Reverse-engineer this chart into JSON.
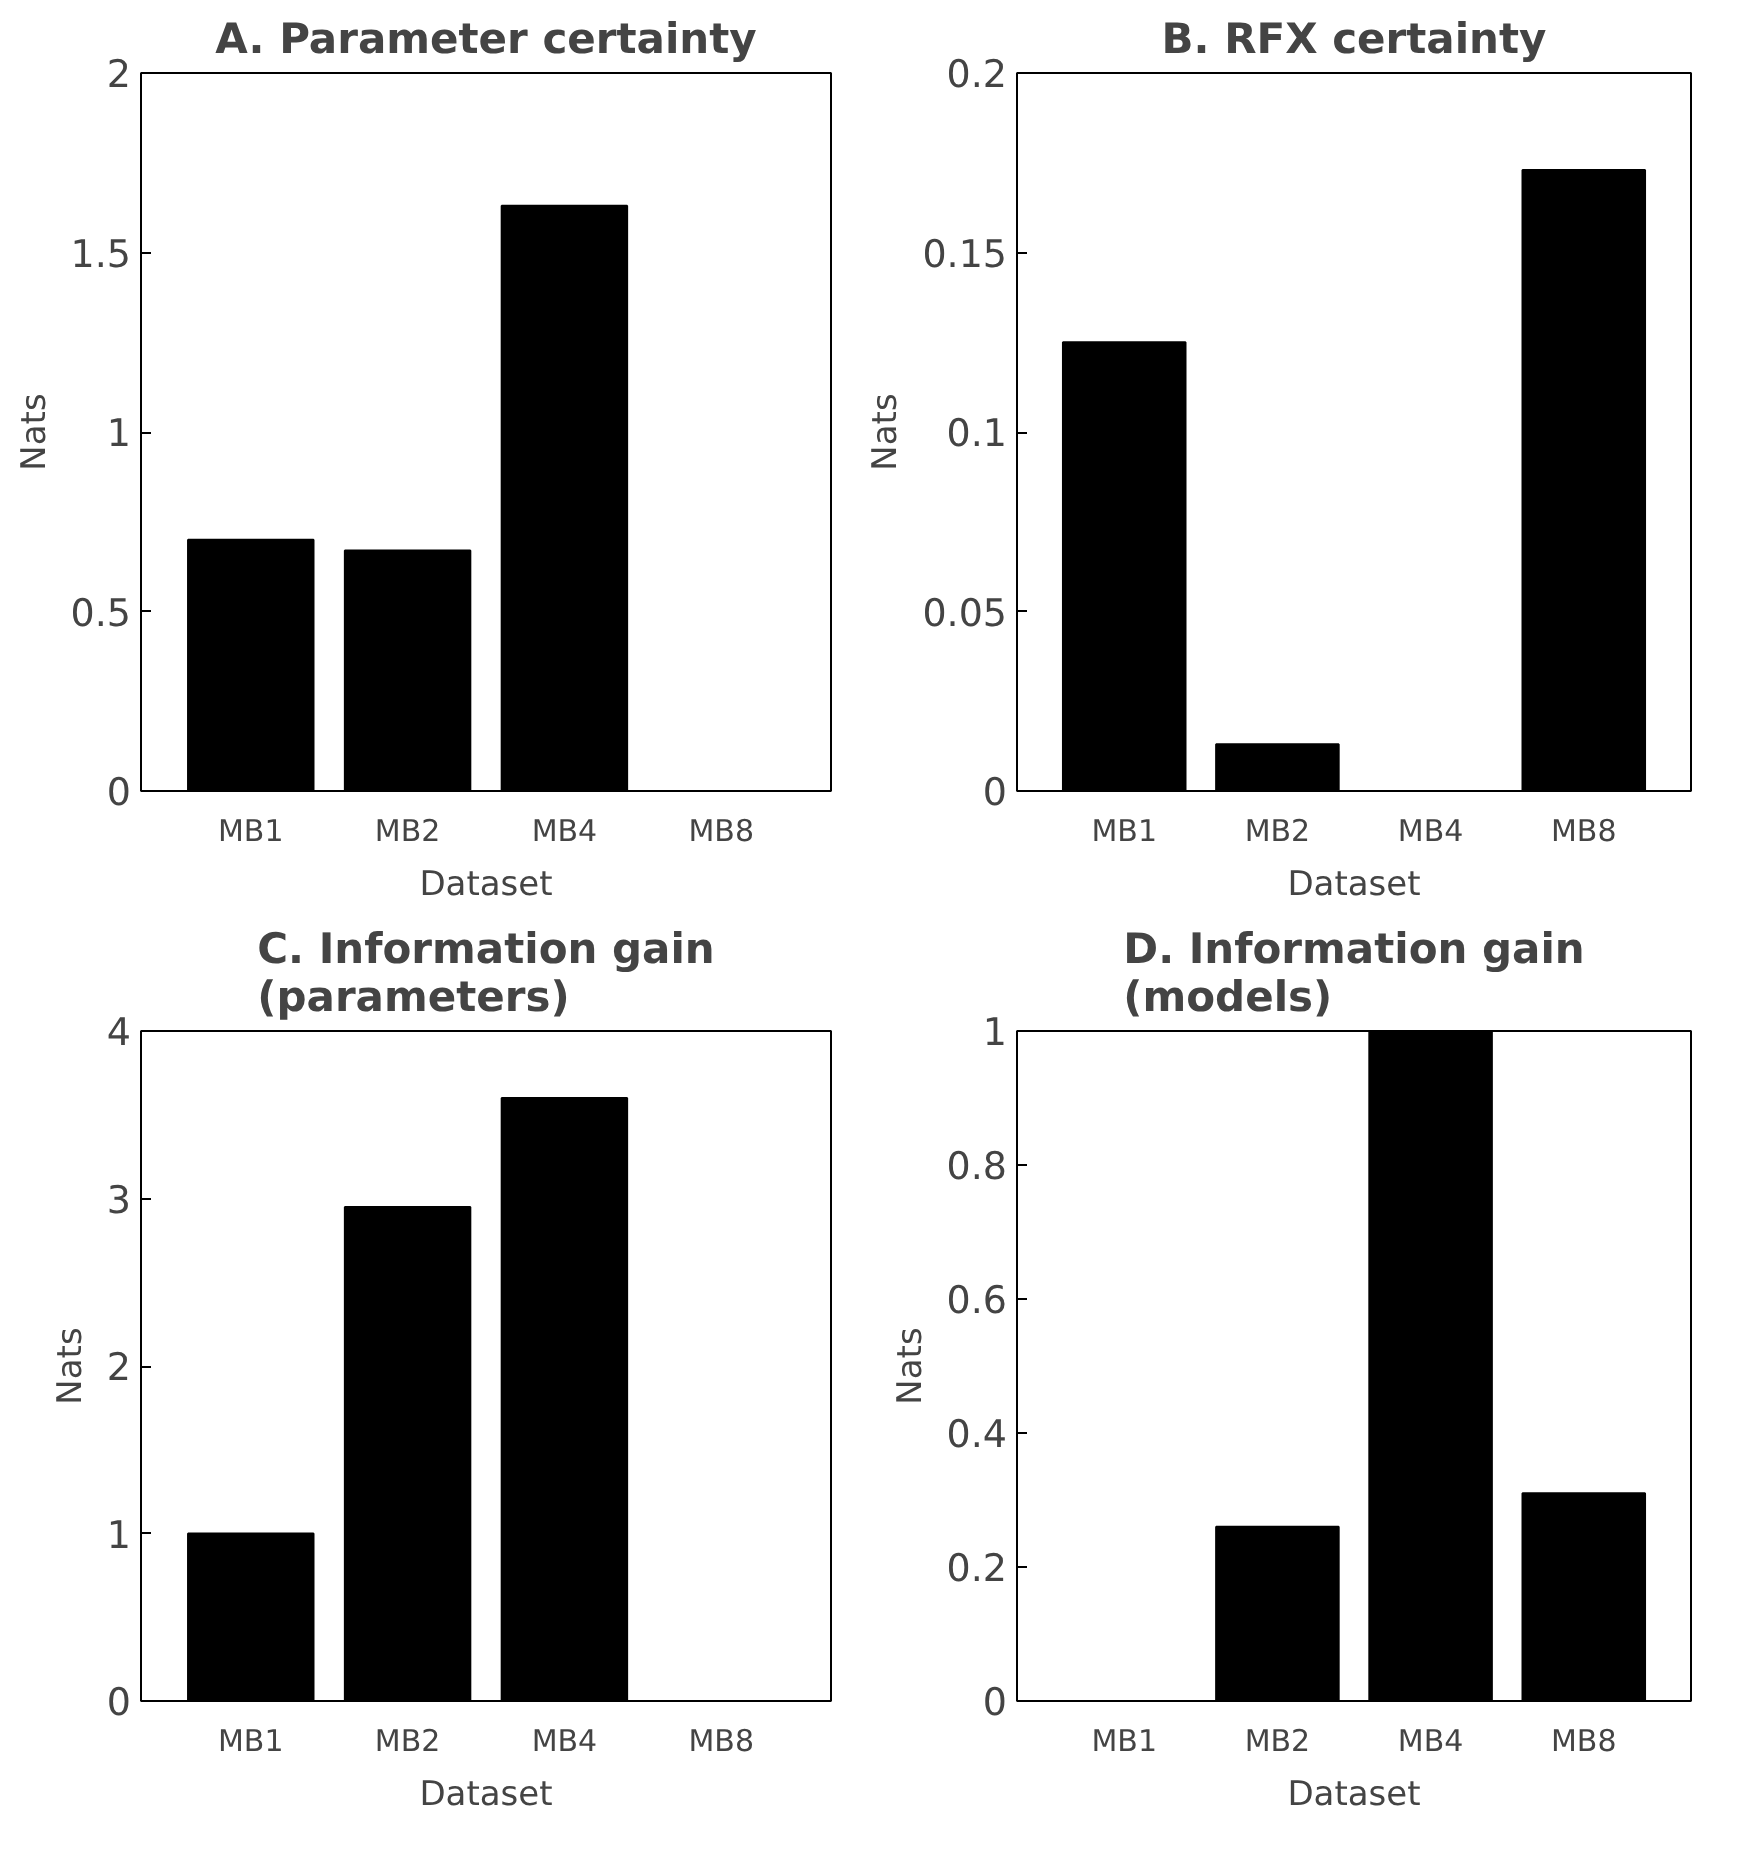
{
  "chart_data": [
    {
      "type": "bar",
      "title": "A. Parameter certainty",
      "xlabel": "Dataset",
      "ylabel": "Nats",
      "categories": [
        "MB1",
        "MB2",
        "MB4",
        "MB8"
      ],
      "values": [
        0.7,
        0.67,
        1.63,
        0
      ],
      "color": "#000000",
      "ylim": [
        0,
        2
      ],
      "yticks": [
        0,
        0.5,
        1,
        1.5,
        2
      ],
      "grid": false
    },
    {
      "type": "bar",
      "title": "B. RFX certainty",
      "xlabel": "Dataset",
      "ylabel": "Nats",
      "categories": [
        "MB1",
        "MB2",
        "MB4",
        "MB8"
      ],
      "values": [
        0.125,
        0.013,
        0,
        0.173
      ],
      "color": "#000000",
      "ylim": [
        0,
        0.2
      ],
      "yticks": [
        0,
        0.05,
        0.1,
        0.15,
        0.2
      ],
      "grid": false
    },
    {
      "type": "bar",
      "title": "C. Information gain\n(parameters)",
      "xlabel": "Dataset",
      "ylabel": "Nats",
      "categories": [
        "MB1",
        "MB2",
        "MB4",
        "MB8"
      ],
      "values": [
        1.0,
        2.95,
        3.6,
        0
      ],
      "color": "#000000",
      "ylim": [
        0,
        4
      ],
      "yticks": [
        0,
        1,
        2,
        3,
        4
      ],
      "grid": false
    },
    {
      "type": "bar",
      "title": "D. Information gain\n(models)",
      "xlabel": "Dataset",
      "ylabel": "Nats",
      "categories": [
        "MB1",
        "MB2",
        "MB4",
        "MB8"
      ],
      "values": [
        0,
        0.26,
        1.0,
        0.31
      ],
      "color": "#000000",
      "ylim": [
        0,
        1
      ],
      "yticks": [
        0,
        0.2,
        0.4,
        0.6,
        0.8,
        1
      ],
      "grid": false
    }
  ]
}
